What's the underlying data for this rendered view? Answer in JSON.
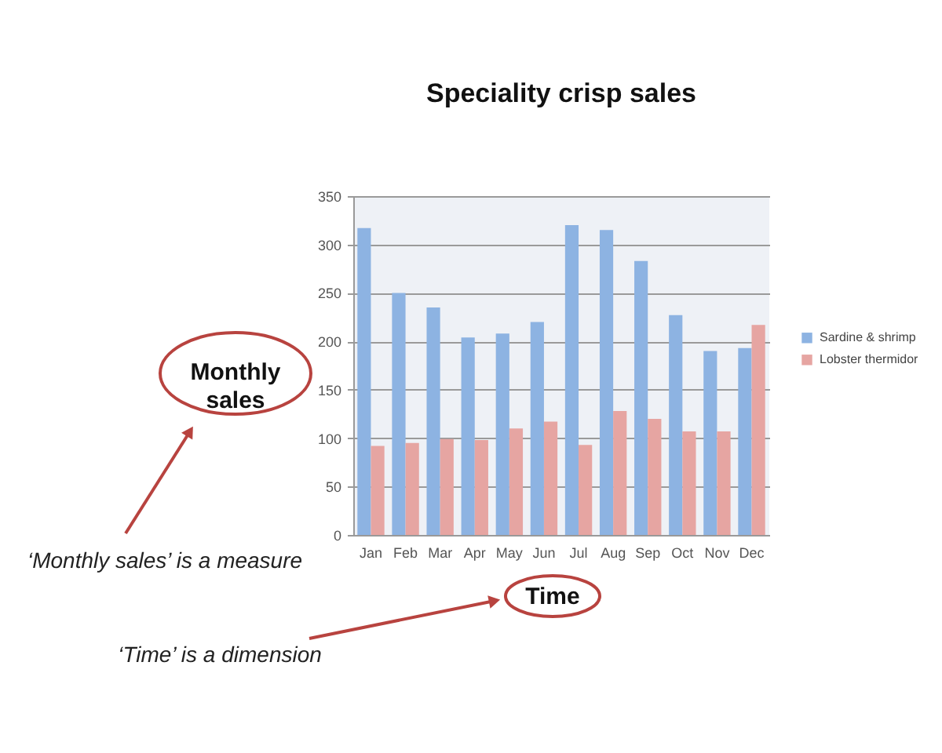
{
  "chart_data": {
    "type": "bar",
    "title": "Speciality crisp sales",
    "xlabel": "Time",
    "ylabel": "Monthly sales",
    "annotations": [
      "‘Monthly sales’ is a measure",
      "‘Time’ is a dimension"
    ],
    "categories": [
      "Jan",
      "Feb",
      "Mar",
      "Apr",
      "May",
      "Jun",
      "Jul",
      "Aug",
      "Sep",
      "Oct",
      "Nov",
      "Dec"
    ],
    "series": [
      {
        "name": "Sardine & shrimp",
        "color": "#8db3e2",
        "values": [
          317,
          250,
          235,
          204,
          208,
          220,
          320,
          315,
          283,
          227,
          190,
          193
        ]
      },
      {
        "name": "Lobster thermidor",
        "color": "#e6a5a2",
        "values": [
          92,
          95,
          99,
          98,
          110,
          117,
          93,
          128,
          120,
          107,
          107,
          217
        ]
      }
    ],
    "ylim": [
      0,
      350
    ],
    "yticks": [
      0,
      50,
      100,
      150,
      200,
      250,
      300,
      350
    ],
    "grid": "y",
    "legend": "right"
  }
}
